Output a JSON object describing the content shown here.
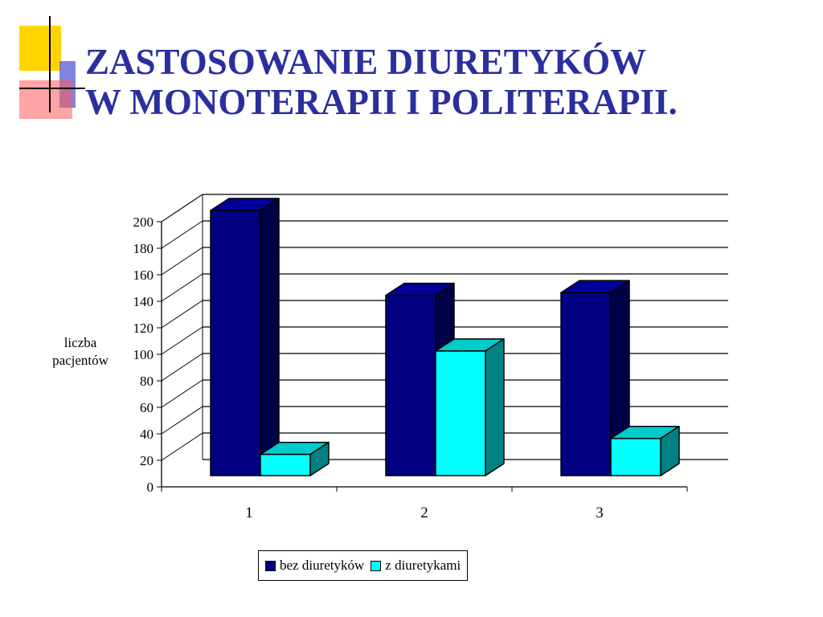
{
  "slide": {
    "title_lines": [
      "ZASTOSOWANIE DIURETYKÓW",
      "W MONOTERAPII I POLITERAPII."
    ]
  },
  "colors": {
    "title": "#2b2f9e",
    "series_bez": "#000080",
    "series_z": "#00ffff"
  },
  "chart_data": {
    "type": "bar",
    "title": "",
    "xlabel": "",
    "ylabel_lines": [
      "liczba",
      "pacjentów"
    ],
    "categories": [
      "1",
      "2",
      "3"
    ],
    "series": [
      {
        "name": "bez diuretyków",
        "values": [
          200,
          136,
          138
        ]
      },
      {
        "name": "z diuretykami",
        "values": [
          16,
          94,
          28
        ]
      }
    ],
    "ylim": [
      0,
      200
    ],
    "yticks": [
      0,
      20,
      40,
      60,
      80,
      100,
      120,
      140,
      160,
      180,
      200
    ],
    "grid": true,
    "legend_position": "bottom",
    "style": "3d-clustered-column"
  }
}
